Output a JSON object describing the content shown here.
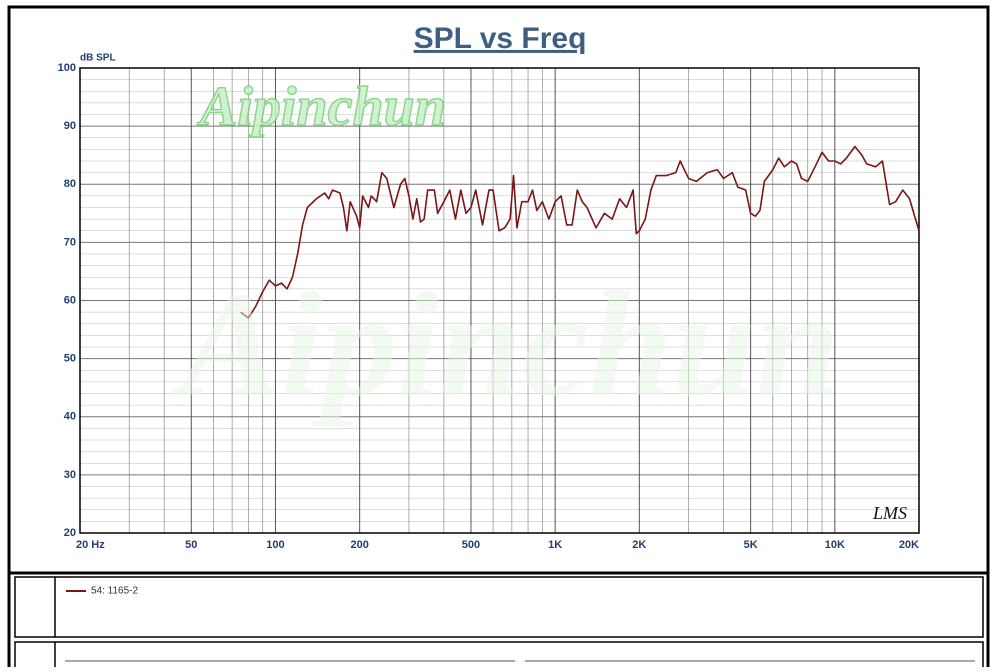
{
  "chart_data": {
    "type": "line",
    "title": "SPL vs Freq",
    "y_label": "dB SPL",
    "watermark": "Aipinchun",
    "logo": "LMS",
    "log_x": true,
    "grid": true,
    "xlim": [
      20,
      20000
    ],
    "ylim": [
      20,
      100
    ],
    "xticks": [
      {
        "value": 20,
        "label": "20 Hz"
      },
      50,
      100,
      200,
      500,
      {
        "value": 1000,
        "label": "1K"
      },
      {
        "value": 2000,
        "label": "2K"
      },
      {
        "value": 5000,
        "label": "5K"
      },
      {
        "value": 10000,
        "label": "10K"
      },
      {
        "value": 20000,
        "label": "20K"
      }
    ],
    "xminorticks": [
      30,
      40,
      60,
      70,
      80,
      90,
      300,
      400,
      600,
      700,
      800,
      900,
      3000,
      4000,
      6000,
      7000,
      8000,
      9000
    ],
    "yticks": [
      20,
      30,
      40,
      50,
      60,
      70,
      80,
      90,
      100
    ],
    "yminorticks": [
      22,
      24,
      26,
      28,
      32,
      34,
      36,
      38,
      42,
      44,
      46,
      48,
      52,
      54,
      56,
      58,
      62,
      64,
      66,
      68,
      72,
      74,
      76,
      78,
      82,
      84,
      86,
      88,
      92,
      94,
      96,
      98
    ],
    "x": [
      75,
      80,
      85,
      90,
      95,
      100,
      105,
      110,
      115,
      120,
      125,
      130,
      140,
      150,
      155,
      160,
      170,
      175,
      180,
      185,
      195,
      200,
      205,
      215,
      220,
      230,
      240,
      250,
      265,
      280,
      290,
      300,
      310,
      320,
      330,
      340,
      350,
      370,
      380,
      400,
      420,
      440,
      460,
      480,
      500,
      520,
      550,
      580,
      600,
      630,
      660,
      690,
      710,
      730,
      760,
      800,
      830,
      860,
      900,
      950,
      1000,
      1050,
      1100,
      1150,
      1200,
      1250,
      1300,
      1400,
      1500,
      1600,
      1700,
      1800,
      1900,
      1950,
      2000,
      2100,
      2200,
      2300,
      2500,
      2700,
      2800,
      3000,
      3200,
      3500,
      3800,
      4000,
      4300,
      4500,
      4800,
      5000,
      5200,
      5400,
      5600,
      5800,
      6000,
      6300,
      6600,
      7000,
      7300,
      7600,
      8000,
      8500,
      9000,
      9500,
      10000,
      10500,
      11000,
      11800,
      12500,
      13000,
      14000,
      14800,
      15700,
      16500,
      17500,
      18500,
      19300,
      20000
    ],
    "series": [
      {
        "name": "54: 1165-2",
        "color": "#7b1616",
        "values": [
          58,
          57,
          59,
          61.5,
          63.5,
          62.5,
          63,
          62,
          64,
          68,
          73,
          76,
          77.5,
          78.5,
          77.5,
          79,
          78.5,
          76,
          72,
          77,
          74.5,
          72.5,
          78,
          76,
          78,
          77,
          82,
          81,
          76,
          80,
          81,
          78,
          74,
          77.5,
          73.5,
          74,
          79,
          79,
          75,
          77,
          79,
          74,
          79,
          75,
          76,
          79,
          73,
          79,
          79,
          72,
          72.5,
          74,
          81.5,
          72.5,
          77,
          77,
          79,
          75.5,
          77,
          74,
          77,
          78,
          73,
          73,
          79,
          77,
          76,
          72.5,
          75,
          74,
          77.5,
          76,
          79,
          71.5,
          72,
          74,
          79,
          81.5,
          81.5,
          82,
          84,
          81,
          80.5,
          82,
          82.5,
          81,
          82,
          79.5,
          79,
          75,
          74.5,
          75.5,
          80.5,
          81.5,
          82.5,
          84.5,
          83,
          84,
          83.5,
          81,
          80.5,
          83,
          85.5,
          84,
          84,
          83.5,
          84.5,
          86.5,
          85,
          83.5,
          83,
          84,
          76.5,
          77,
          79,
          77.5,
          74.5,
          72
        ]
      }
    ]
  }
}
